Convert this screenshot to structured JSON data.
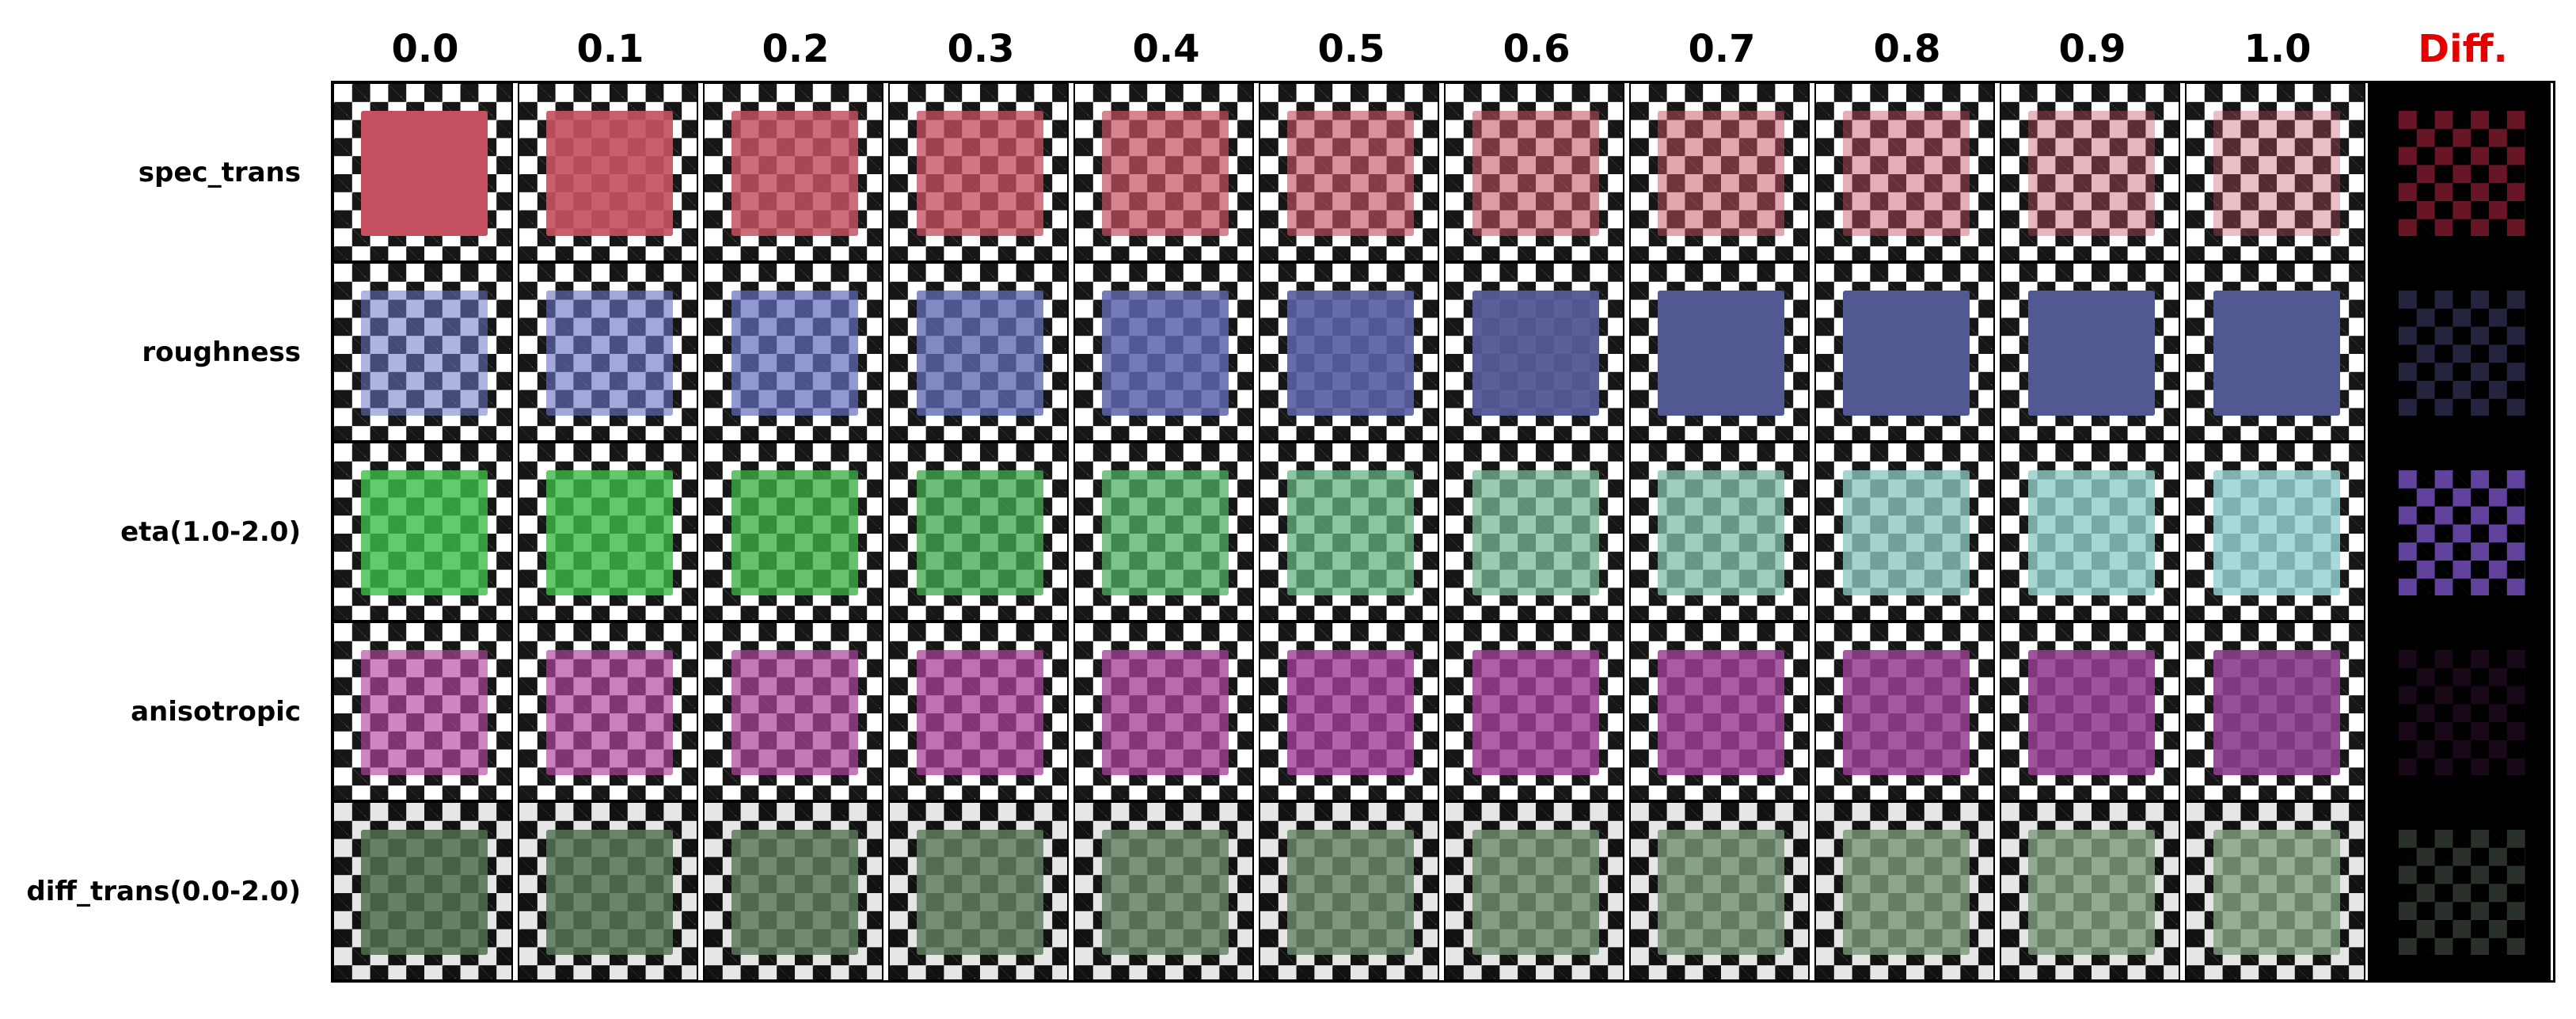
{
  "figure": {
    "column_headers": [
      "0.0",
      "0.1",
      "0.2",
      "0.3",
      "0.4",
      "0.5",
      "0.6",
      "0.7",
      "0.8",
      "0.9",
      "1.0"
    ],
    "diff_header": "Diff.",
    "colors": {
      "diff_header": "#e50000",
      "checker_dark": "#161616",
      "checker_light": "#ffffff"
    },
    "rows": [
      {
        "label": "spec_trans",
        "tints": [
          [
            196,
            80,
            96,
            1.0
          ],
          [
            196,
            80,
            96,
            0.92
          ],
          [
            196,
            80,
            96,
            0.84
          ],
          [
            196,
            80,
            96,
            0.77
          ],
          [
            196,
            80,
            96,
            0.7
          ],
          [
            196,
            80,
            96,
            0.63
          ],
          [
            196,
            80,
            96,
            0.57
          ],
          [
            196,
            80,
            96,
            0.51
          ],
          [
            196,
            80,
            96,
            0.46
          ],
          [
            196,
            80,
            96,
            0.41
          ],
          [
            196,
            80,
            96,
            0.36
          ]
        ],
        "diff": [
          190,
          40,
          70,
          0.55
        ]
      },
      {
        "label": "roughness",
        "tints": [
          [
            110,
            120,
            200,
            0.55
          ],
          [
            105,
            115,
            195,
            0.62
          ],
          [
            100,
            110,
            190,
            0.7
          ],
          [
            95,
            105,
            180,
            0.78
          ],
          [
            92,
            100,
            170,
            0.85
          ],
          [
            88,
            94,
            160,
            0.91
          ],
          [
            84,
            90,
            150,
            0.96
          ],
          [
            82,
            88,
            145,
            1.0
          ],
          [
            82,
            88,
            145,
            1.0
          ],
          [
            82,
            88,
            145,
            1.0
          ],
          [
            82,
            88,
            145,
            1.0
          ]
        ],
        "diff": [
          80,
          80,
          140,
          0.45
        ]
      },
      {
        "label": "eta(1.0-2.0)",
        "tints": [
          [
            60,
            190,
            70,
            0.8
          ],
          [
            60,
            185,
            70,
            0.8
          ],
          [
            60,
            175,
            70,
            0.78
          ],
          [
            65,
            170,
            80,
            0.76
          ],
          [
            80,
            175,
            100,
            0.74
          ],
          [
            100,
            180,
            130,
            0.74
          ],
          [
            120,
            185,
            150,
            0.74
          ],
          [
            130,
            190,
            170,
            0.76
          ],
          [
            140,
            200,
            190,
            0.78
          ],
          [
            145,
            205,
            200,
            0.8
          ],
          [
            150,
            210,
            210,
            0.82
          ]
        ],
        "diff": [
          130,
          90,
          210,
          0.75
        ]
      },
      {
        "label": "anisotropic",
        "tints": [
          [
            180,
            70,
            160,
            0.65
          ],
          [
            176,
            68,
            158,
            0.68
          ],
          [
            172,
            66,
            156,
            0.71
          ],
          [
            168,
            64,
            154,
            0.74
          ],
          [
            164,
            62,
            152,
            0.77
          ],
          [
            160,
            60,
            150,
            0.8
          ],
          [
            156,
            60,
            148,
            0.82
          ],
          [
            152,
            60,
            146,
            0.84
          ],
          [
            148,
            60,
            144,
            0.86
          ],
          [
            144,
            60,
            142,
            0.88
          ],
          [
            140,
            60,
            140,
            0.9
          ]
        ],
        "diff": [
          60,
          20,
          60,
          0.4
        ]
      },
      {
        "label": "diff_trans(0.0-2.0)",
        "tints": [
          [
            80,
            110,
            80,
            0.85
          ],
          [
            85,
            115,
            85,
            0.85
          ],
          [
            90,
            120,
            90,
            0.84
          ],
          [
            95,
            125,
            95,
            0.84
          ],
          [
            100,
            130,
            100,
            0.83
          ],
          [
            105,
            135,
            105,
            0.83
          ],
          [
            110,
            140,
            110,
            0.82
          ],
          [
            115,
            145,
            115,
            0.82
          ],
          [
            120,
            150,
            120,
            0.81
          ],
          [
            125,
            155,
            125,
            0.81
          ],
          [
            130,
            160,
            130,
            0.8
          ]
        ],
        "diff": [
          60,
          70,
          60,
          0.7
        ]
      }
    ]
  }
}
